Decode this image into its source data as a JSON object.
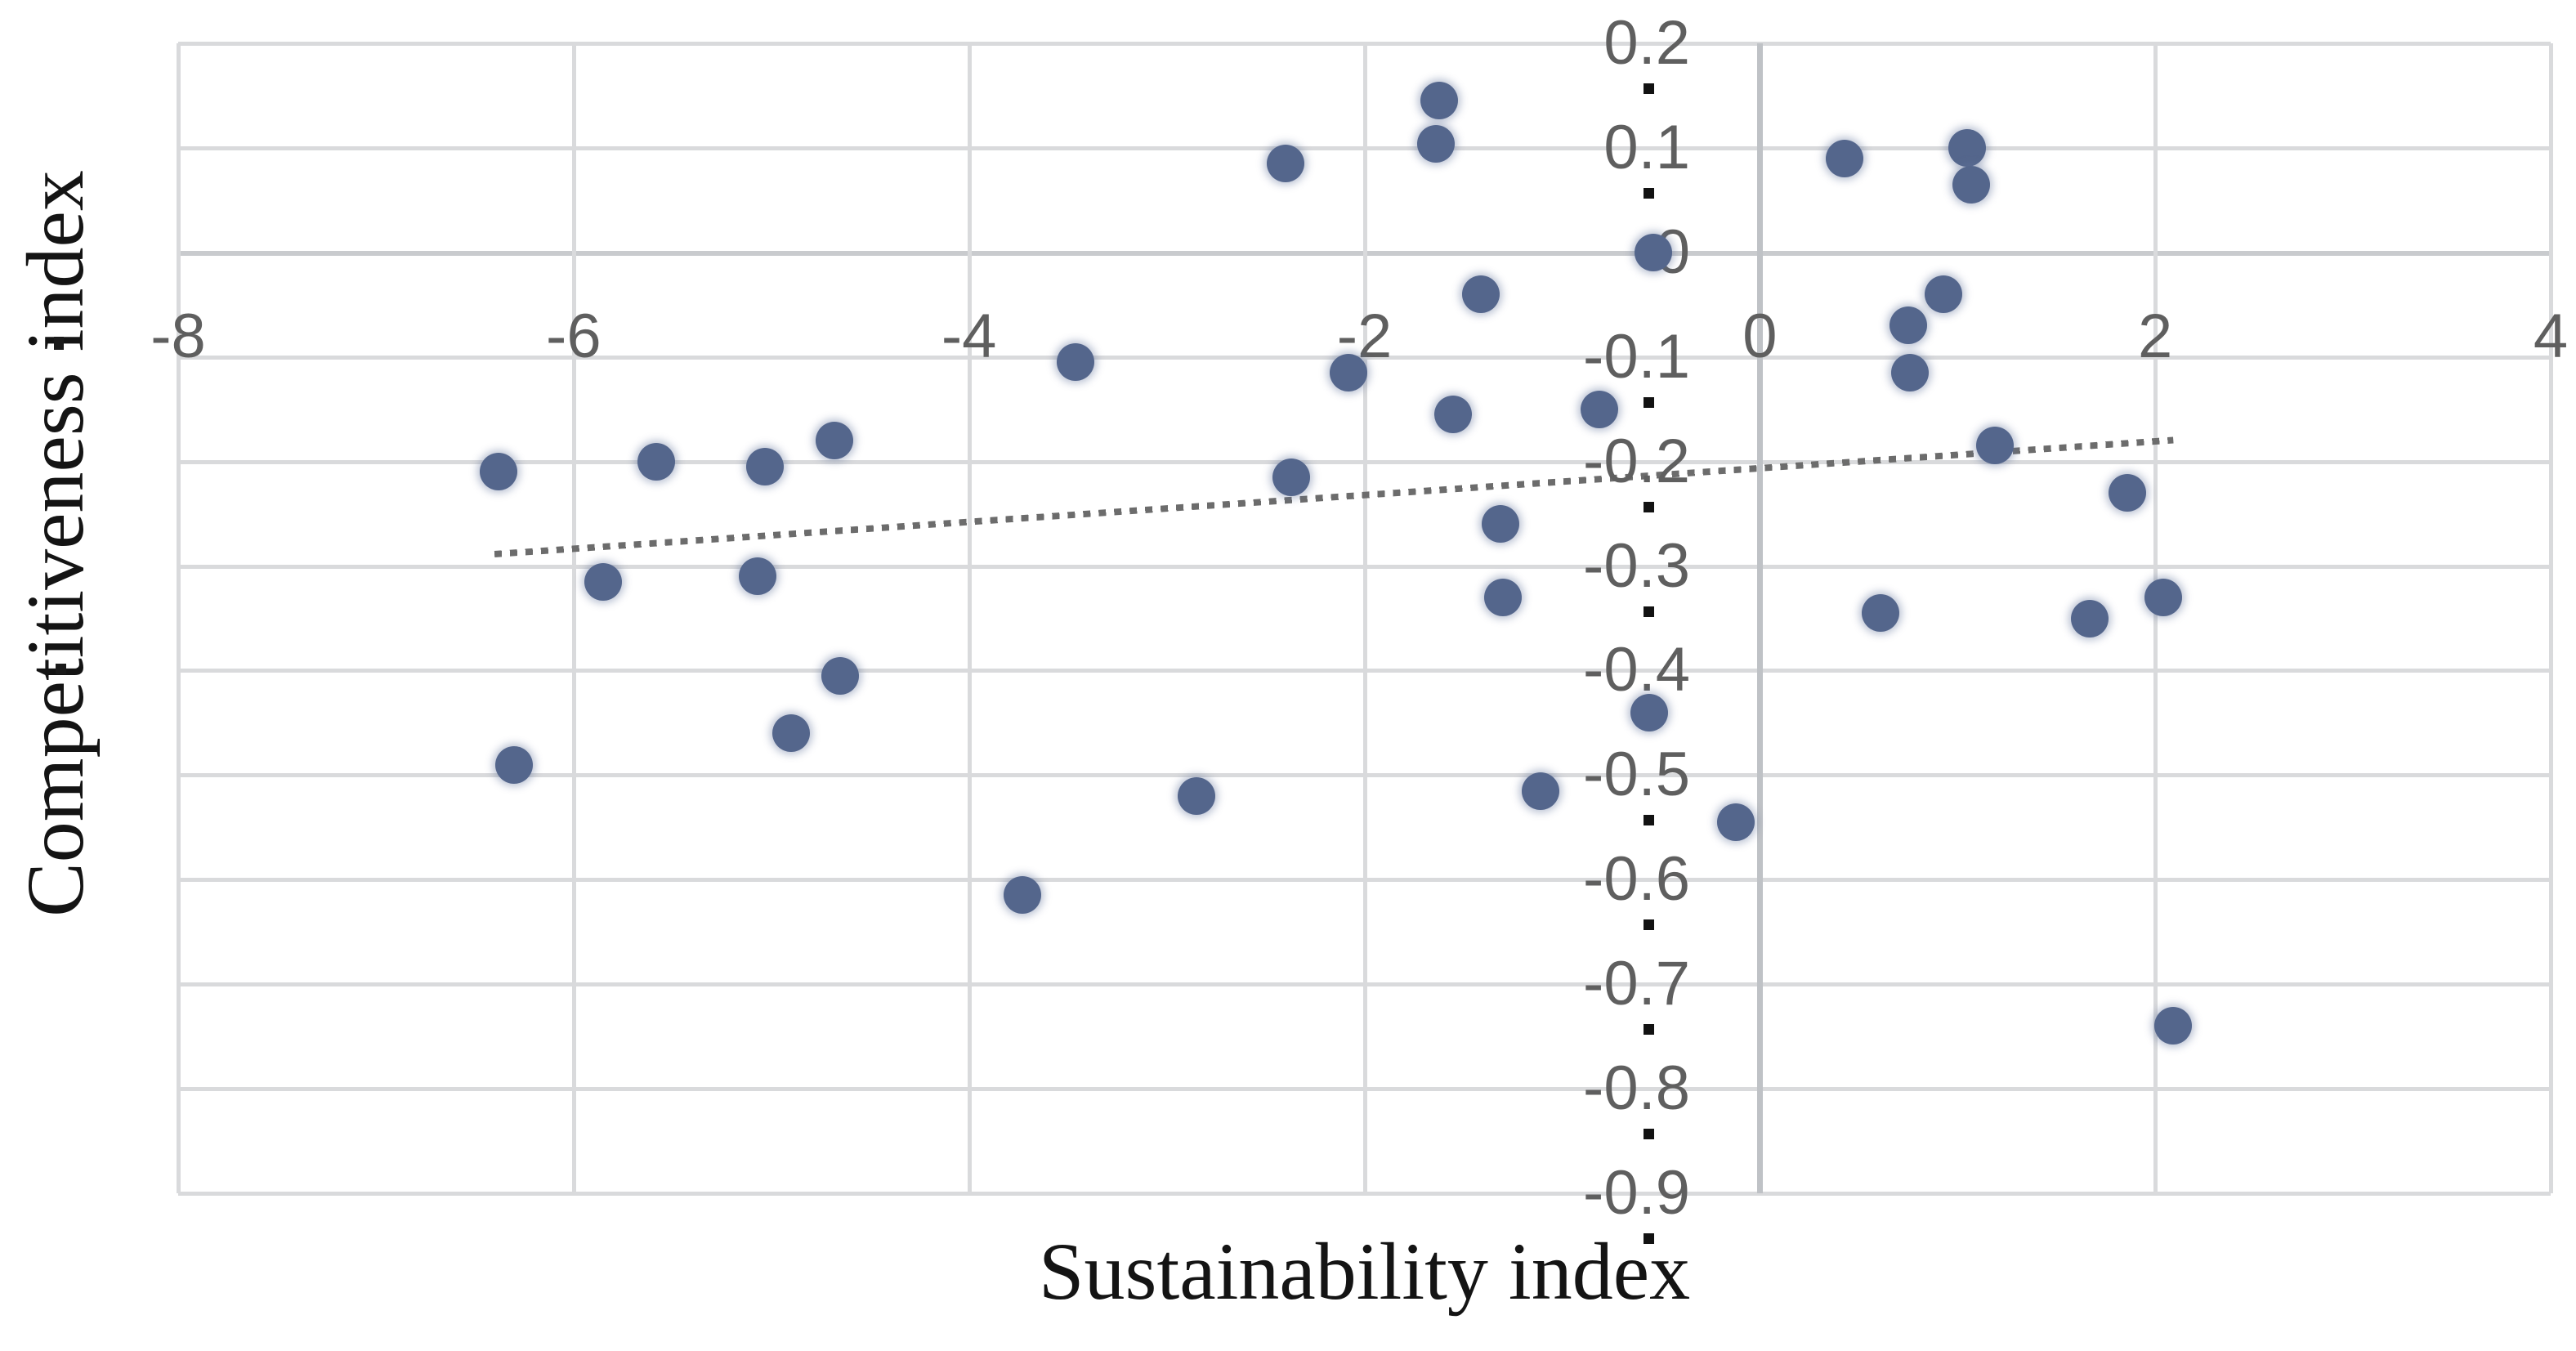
{
  "figure": {
    "background": "#ffffff",
    "legend": "none"
  },
  "chart_data": {
    "type": "scatter",
    "title": "",
    "xlabel": "Sustainability index",
    "ylabel": "Competitiveness index",
    "xlim": [
      -8,
      4
    ],
    "ylim": [
      -0.9,
      0.2
    ],
    "grid": true,
    "x_tick_values": [
      -8,
      -6,
      -4,
      -2,
      0,
      2,
      4
    ],
    "x_tick_labels": [
      "-8",
      "-6",
      "-4",
      "-2",
      "0",
      "2",
      "4"
    ],
    "y_tick_values": [
      0.2,
      0.1,
      0,
      -0.1,
      -0.2,
      -0.3,
      -0.4,
      -0.5,
      -0.6,
      -0.7,
      -0.8,
      -0.9
    ],
    "y_tick_labels": [
      "0.2",
      "0.1",
      "0",
      "-0.1",
      "-0.2",
      "-0.3",
      "-0.4",
      "-0.5",
      "-0.6",
      "-0.7",
      "-0.8",
      "-0.9"
    ],
    "points": [
      [
        -6.38,
        -0.21
      ],
      [
        -5.58,
        -0.2
      ],
      [
        -5.03,
        -0.205
      ],
      [
        -4.68,
        -0.18
      ],
      [
        -5.85,
        -0.315
      ],
      [
        -5.07,
        -0.31
      ],
      [
        -4.65,
        -0.405
      ],
      [
        -4.9,
        -0.46
      ],
      [
        -6.3,
        -0.49
      ],
      [
        -3.73,
        -0.615
      ],
      [
        -3.46,
        -0.105
      ],
      [
        -2.85,
        -0.52
      ],
      [
        -2.4,
        0.085
      ],
      [
        -2.37,
        -0.215
      ],
      [
        -2.08,
        -0.115
      ],
      [
        -1.62,
        0.145
      ],
      [
        -1.64,
        0.104
      ],
      [
        -1.55,
        -0.155
      ],
      [
        -1.41,
        -0.04
      ],
      [
        -1.31,
        -0.26
      ],
      [
        -1.3,
        -0.33
      ],
      [
        -1.11,
        -0.515
      ],
      [
        -0.81,
        -0.15
      ],
      [
        -0.54,
        0.0
      ],
      [
        -0.56,
        -0.44
      ],
      [
        -0.12,
        -0.545
      ],
      [
        0.43,
        0.09
      ],
      [
        1.05,
        0.1
      ],
      [
        1.07,
        0.065
      ],
      [
        0.93,
        -0.04
      ],
      [
        0.75,
        -0.07
      ],
      [
        0.76,
        -0.115
      ],
      [
        1.19,
        -0.185
      ],
      [
        1.86,
        -0.23
      ],
      [
        2.04,
        -0.33
      ],
      [
        0.61,
        -0.345
      ],
      [
        1.67,
        -0.35
      ],
      [
        2.09,
        -0.74
      ]
    ],
    "trendline": {
      "style": "dotted-linear",
      "x1": -6.4,
      "y1": -0.289,
      "x2": 2.09,
      "y2": -0.18
    },
    "colors": {
      "marker": "#54668c",
      "trendline": "#6c6c6c",
      "gridline": "#d9dadc",
      "axis_line": "#bfc2c6",
      "tick_text": "#5f5f5f",
      "axis_title_text": "#141414"
    }
  }
}
